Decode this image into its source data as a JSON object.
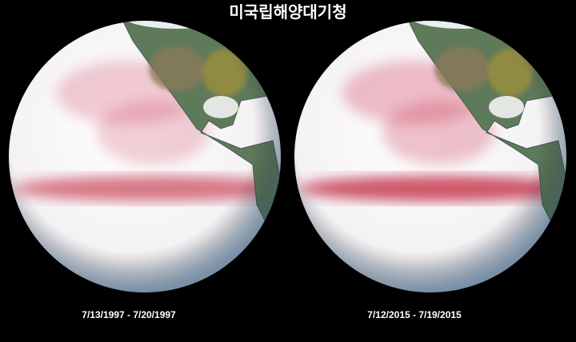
{
  "header": {
    "title": "미국립해양대기청"
  },
  "panels": [
    {
      "caption": "7/13/1997 - 7/20/1997"
    },
    {
      "caption": "7/12/2015 - 7/19/2015"
    }
  ]
}
